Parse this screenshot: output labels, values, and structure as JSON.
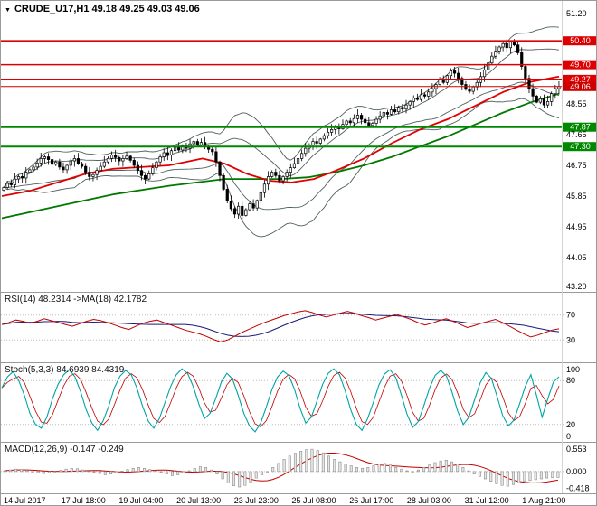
{
  "header": {
    "title": "CRUDE_U17,H1 49.18 49.25 49.03 49.06",
    "symbol": "CRUDE_U17",
    "timeframe": "H1"
  },
  "chart_data": {
    "type": "candlestick",
    "title": "CRUDE_U17,H1",
    "ohlc_display": {
      "open": 49.18,
      "high": 49.25,
      "low": 49.03,
      "close": 49.06
    },
    "x_labels": [
      "14 Jul 2017",
      "17 Jul 18:00",
      "19 Jul 04:00",
      "20 Jul 13:00",
      "23 Jul 23:00",
      "25 Jul 08:00",
      "26 Jul 17:00",
      "28 Jul 03:00",
      "31 Jul 12:00",
      "1 Aug 21:00"
    ],
    "price_axis": {
      "min": 43.2,
      "max": 51.2,
      "plain_ticks": [
        51.2,
        48.55,
        47.65,
        46.75,
        45.85,
        44.95,
        44.05,
        43.2
      ]
    },
    "levels": [
      {
        "price": 50.4,
        "type": "resistance",
        "color": "#dd0000",
        "width": 1.6
      },
      {
        "price": 49.7,
        "type": "resistance",
        "color": "#dd0000",
        "width": 1.6
      },
      {
        "price": 49.27,
        "type": "resistance",
        "color": "#dd0000",
        "width": 1.6
      },
      {
        "price": 47.87,
        "type": "support",
        "color": "#008800",
        "width": 2
      },
      {
        "price": 47.3,
        "type": "support",
        "color": "#008800",
        "width": 2
      }
    ],
    "current_price": {
      "price": 49.06,
      "color": "#cc0000"
    },
    "closes": [
      46.1,
      46.22,
      46.18,
      46.35,
      46.42,
      46.38,
      46.55,
      46.62,
      46.7,
      46.82,
      46.95,
      47.0,
      46.92,
      46.78,
      46.85,
      46.7,
      46.62,
      46.75,
      46.88,
      46.95,
      46.8,
      46.72,
      46.55,
      46.42,
      46.48,
      46.6,
      46.72,
      46.85,
      46.95,
      47.05,
      46.98,
      46.88,
      46.95,
      47.02,
      46.9,
      46.75,
      46.6,
      46.45,
      46.35,
      46.5,
      46.68,
      46.85,
      47.0,
      47.12,
      47.05,
      47.18,
      47.28,
      47.2,
      47.32,
      47.25,
      47.38,
      47.45,
      47.35,
      47.42,
      47.3,
      47.22,
      47.15,
      46.85,
      46.45,
      46.05,
      45.7,
      45.48,
      45.32,
      45.55,
      45.28,
      45.45,
      45.62,
      45.5,
      45.72,
      45.95,
      46.2,
      46.42,
      46.55,
      46.45,
      46.3,
      46.42,
      46.55,
      46.68,
      46.8,
      46.95,
      47.1,
      47.25,
      47.35,
      47.45,
      47.4,
      47.52,
      47.62,
      47.72,
      47.8,
      47.88,
      47.82,
      47.95,
      48.05,
      48.0,
      48.12,
      48.22,
      48.1,
      48.0,
      47.92,
      47.98,
      48.1,
      48.2,
      48.3,
      48.25,
      48.38,
      48.32,
      48.45,
      48.4,
      48.52,
      48.62,
      48.72,
      48.68,
      48.82,
      48.78,
      48.9,
      49.0,
      49.12,
      49.25,
      49.18,
      49.38,
      49.52,
      49.45,
      49.3,
      49.12,
      48.98,
      48.92,
      49.05,
      49.18,
      49.35,
      49.55,
      49.75,
      49.95,
      50.1,
      50.22,
      50.32,
      50.2,
      50.38,
      50.28,
      50.05,
      49.65,
      49.3,
      49.0,
      48.78,
      48.6,
      48.7,
      48.52,
      48.62,
      48.85,
      49.0,
      49.06
    ],
    "ma_fast_red": [
      [
        0,
        45.85
      ],
      [
        0.05,
        46.0
      ],
      [
        0.1,
        46.25
      ],
      [
        0.15,
        46.5
      ],
      [
        0.2,
        46.65
      ],
      [
        0.25,
        46.7
      ],
      [
        0.3,
        46.75
      ],
      [
        0.33,
        46.85
      ],
      [
        0.36,
        46.95
      ],
      [
        0.4,
        46.8
      ],
      [
        0.44,
        46.5
      ],
      [
        0.48,
        46.3
      ],
      [
        0.52,
        46.25
      ],
      [
        0.56,
        46.35
      ],
      [
        0.6,
        46.6
      ],
      [
        0.65,
        46.95
      ],
      [
        0.7,
        47.4
      ],
      [
        0.75,
        47.8
      ],
      [
        0.8,
        48.1
      ],
      [
        0.85,
        48.5
      ],
      [
        0.9,
        48.9
      ],
      [
        0.95,
        49.2
      ],
      [
        1,
        49.35
      ]
    ],
    "ma_slow_green": [
      [
        0,
        45.2
      ],
      [
        0.1,
        45.55
      ],
      [
        0.2,
        45.9
      ],
      [
        0.3,
        46.15
      ],
      [
        0.4,
        46.35
      ],
      [
        0.5,
        46.35
      ],
      [
        0.55,
        46.4
      ],
      [
        0.6,
        46.55
      ],
      [
        0.65,
        46.75
      ],
      [
        0.7,
        47.0
      ],
      [
        0.75,
        47.3
      ],
      [
        0.8,
        47.6
      ],
      [
        0.85,
        47.95
      ],
      [
        0.9,
        48.3
      ],
      [
        0.95,
        48.6
      ],
      [
        1,
        48.85
      ]
    ],
    "rsi": {
      "label": "RSI(14) 48.2314  ->MA(18) 42.1782",
      "value": 48.2314,
      "ma_value": 42.1782,
      "range": [
        0,
        100
      ],
      "ticks": [
        70,
        30
      ],
      "values": [
        55,
        58,
        62,
        60,
        57,
        60,
        64,
        61,
        58,
        55,
        52,
        56,
        60,
        63,
        61,
        58,
        54,
        50,
        47,
        52,
        57,
        60,
        62,
        58,
        54,
        50,
        46,
        43,
        40,
        36,
        31,
        27,
        30,
        36,
        42,
        47,
        52,
        57,
        61,
        65,
        69,
        72,
        75,
        77,
        74,
        70,
        67,
        70,
        73,
        76,
        73,
        69,
        66,
        62,
        65,
        68,
        71,
        67,
        63,
        58,
        54,
        57,
        61,
        64,
        60,
        55,
        50,
        53,
        57,
        60,
        63,
        58,
        52,
        46,
        40,
        35,
        38,
        42,
        46,
        48
      ]
    },
    "stoch": {
      "label": "Stoch(5,3,3) 84.6939 84.4319",
      "main": 84.6939,
      "signal": 84.4319,
      "range": [
        0,
        100
      ],
      "ticks": [
        100,
        80,
        20,
        0
      ],
      "values": [
        70,
        85,
        92,
        80,
        60,
        35,
        20,
        15,
        30,
        55,
        75,
        88,
        95,
        85,
        65,
        40,
        22,
        12,
        25,
        45,
        70,
        86,
        94,
        88,
        70,
        45,
        25,
        15,
        28,
        50,
        72,
        88,
        96,
        90,
        72,
        48,
        28,
        35,
        55,
        78,
        90,
        82,
        60,
        35,
        18,
        10,
        22,
        44,
        68,
        85,
        93,
        87,
        68,
        42,
        22,
        30,
        52,
        75,
        90,
        96,
        88,
        66,
        40,
        20,
        12,
        28,
        50,
        74,
        89,
        95,
        84,
        60,
        34,
        16,
        24,
        46,
        70,
        87,
        94,
        86,
        64,
        38,
        20,
        30,
        54,
        77,
        91,
        83,
        58,
        32,
        18,
        26,
        48,
        72,
        88,
        60,
        30,
        55,
        78,
        85
      ]
    },
    "macd": {
      "label": "MACD(12,26,9) -0.147 -0.249",
      "macd": -0.147,
      "signal": -0.249,
      "ticks": [
        0.553,
        0.0,
        -0.418
      ],
      "values": [
        0.02,
        0.04,
        0.06,
        0.05,
        0.03,
        0.0,
        -0.03,
        -0.05,
        -0.04,
        -0.01,
        0.03,
        0.06,
        0.08,
        0.07,
        0.04,
        0.01,
        -0.02,
        -0.05,
        -0.08,
        -0.06,
        -0.03,
        0.01,
        0.05,
        0.08,
        0.1,
        0.08,
        0.05,
        0.02,
        -0.02,
        -0.06,
        -0.1,
        -0.08,
        -0.04,
        0.02,
        0.08,
        0.12,
        0.1,
        0.04,
        -0.06,
        -0.18,
        -0.28,
        -0.35,
        -0.38,
        -0.34,
        -0.26,
        -0.16,
        -0.08,
        0.0,
        0.1,
        0.2,
        0.3,
        0.38,
        0.45,
        0.5,
        0.54,
        0.55,
        0.52,
        0.46,
        0.38,
        0.3,
        0.24,
        0.18,
        0.14,
        0.1,
        0.08,
        0.1,
        0.14,
        0.18,
        0.2,
        0.16,
        0.1,
        0.06,
        0.02,
        0.0,
        0.04,
        0.1,
        0.16,
        0.22,
        0.26,
        0.28,
        0.24,
        0.18,
        0.1,
        0.02,
        -0.06,
        -0.12,
        -0.18,
        -0.24,
        -0.3,
        -0.34,
        -0.36,
        -0.32,
        -0.28,
        -0.24,
        -0.22,
        -0.2,
        -0.18,
        -0.16,
        -0.15,
        -0.147
      ]
    },
    "colors": {
      "candle": "#000000",
      "band": "#4f5f5f",
      "ma_fast": "#e00000",
      "ma_slow": "#007800",
      "rsi_main": "#c00000",
      "rsi_ma": "#1a1a78",
      "stoch_main": "#00a3a3",
      "stoch_signal": "#c00000",
      "macd_hist_fill": "#e6e6e6",
      "macd_hist_stroke": "#8a8a8a",
      "macd_signal": "#c00000",
      "grid_dotted": "#bdbdbd",
      "separator": "#9a9a9a",
      "axis_text": "#000000"
    }
  }
}
